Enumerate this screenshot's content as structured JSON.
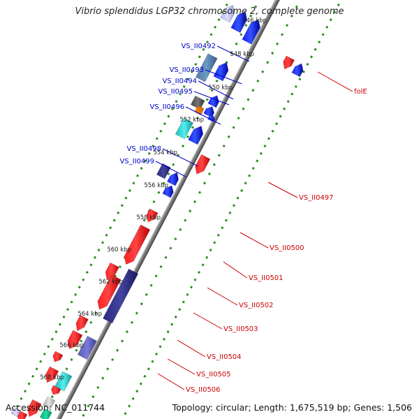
{
  "title": "Vibrio splendidus LGP32 chromosome 2, complete genome",
  "footer": {
    "accession": "Accession: NC_011744",
    "topology": "Topology: circular; Length: 1,675,519 bp; Genes: 1,506"
  },
  "colors": {
    "backbone": "#7a7a7a",
    "tick_dots": "#2e8b20",
    "label_forward": "#0000cc",
    "label_reverse": "#cc0000"
  },
  "scale_labels": [
    "546 kbp",
    "548 kbp",
    "550 kbp",
    "552 kbp",
    "554 kbp",
    "556 kbp",
    "558 kbp",
    "560 kbp",
    "562 kbp",
    "564 kbp",
    "566 kbp",
    "568 kbp"
  ],
  "forward_labels": [
    "VS_II0492",
    "VS_II0493",
    "VS_II0494",
    "VS_II0495",
    "VS_II0496",
    "VS_II0498",
    "VS_II0499"
  ],
  "reverse_labels": [
    "folE",
    "VS_II0497",
    "VS_II0500",
    "VS_II0501",
    "VS_II0502",
    "VS_II0503",
    "VS_II0504",
    "VS_II0505",
    "VS_II0506"
  ]
}
